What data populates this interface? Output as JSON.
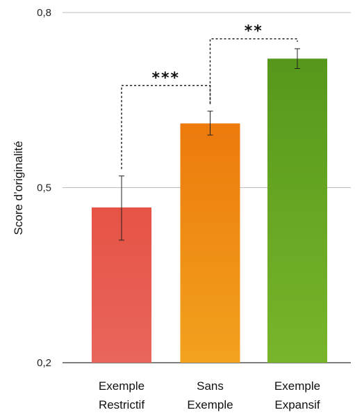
{
  "chart_data": {
    "type": "bar",
    "title": "",
    "xlabel": "",
    "ylabel": "Score d’originalité",
    "ylim": [
      0.2,
      0.8
    ],
    "yticks": [
      "0,2",
      "0,5",
      "0,8"
    ],
    "yticks_values": [
      0.2,
      0.5,
      0.8
    ],
    "grid": true,
    "categories": [
      [
        "Exemple",
        "Restrictif"
      ],
      [
        "Sans",
        "Exemple"
      ],
      [
        "Exemple",
        "Expansif"
      ]
    ],
    "values": [
      0.466,
      0.61,
      0.721
    ],
    "error_low": [
      0.41,
      0.59,
      0.704
    ],
    "error_high": [
      0.52,
      0.631,
      0.738
    ],
    "colors": [
      [
        "#e65345",
        "#e8665c"
      ],
      [
        "#ec7a0c",
        "#f2a21e"
      ],
      [
        "#55981b",
        "#78b52a"
      ]
    ],
    "significance": [
      {
        "from": 0,
        "to": 1,
        "label": "***",
        "level": 0.675
      },
      {
        "from": 1,
        "to": 2,
        "label": "**",
        "level": 0.755
      }
    ]
  }
}
